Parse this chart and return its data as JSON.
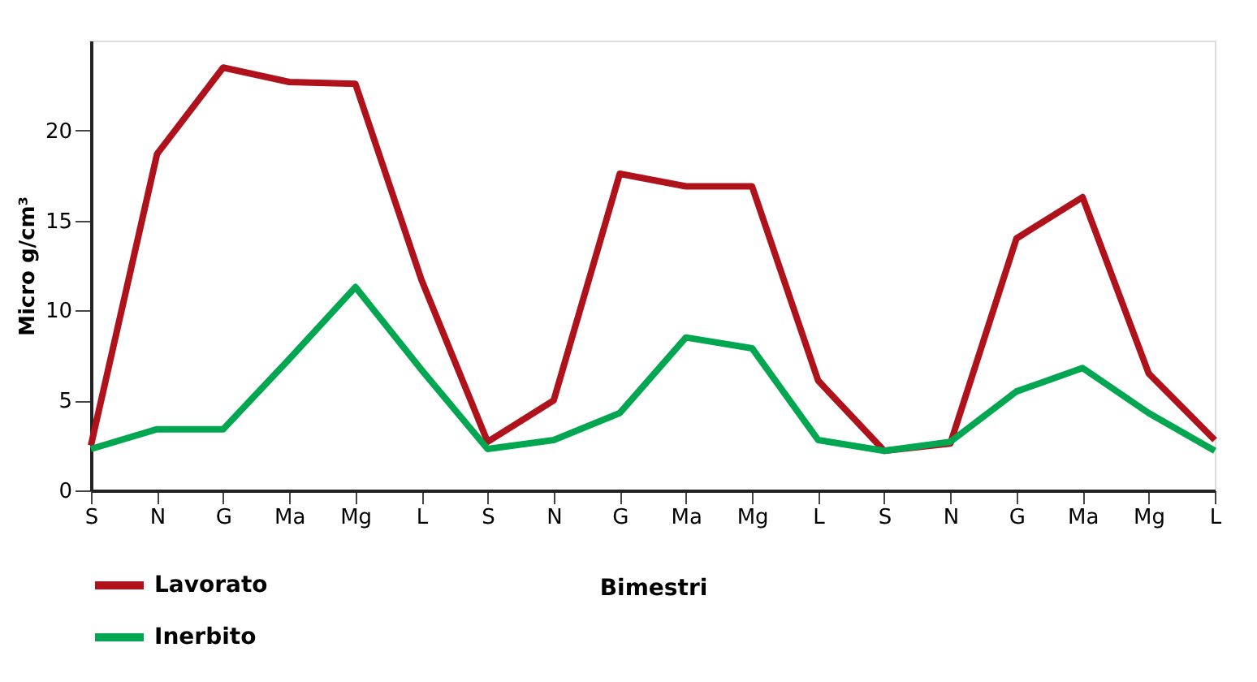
{
  "chart_data": {
    "type": "line",
    "xlabel": "Bimestri",
    "ylabel": "Micro g/cm³",
    "categories": [
      "S",
      "N",
      "G",
      "Ma",
      "Mg",
      "L",
      "S",
      "N",
      "G",
      "Ma",
      "Mg",
      "L",
      "S",
      "N",
      "G",
      "Ma",
      "Mg",
      "L"
    ],
    "series": [
      {
        "name": "Lavorato",
        "color": "#b0121b",
        "values": [
          2.5,
          18.7,
          23.5,
          22.7,
          22.6,
          11.7,
          2.7,
          5.0,
          17.6,
          16.9,
          16.9,
          6.1,
          2.2,
          2.6,
          14.0,
          16.3,
          6.5,
          2.8
        ]
      },
      {
        "name": "Inerbito",
        "color": "#00a650",
        "values": [
          2.3,
          3.4,
          3.4,
          7.3,
          11.3,
          6.7,
          2.3,
          2.8,
          4.3,
          8.5,
          7.9,
          2.8,
          2.2,
          2.7,
          5.5,
          6.8,
          4.3,
          2.2
        ]
      }
    ],
    "ylim": [
      0,
      25
    ],
    "yticks": [
      0,
      5,
      10,
      15,
      20
    ],
    "grid": false,
    "legend": "bottom left",
    "marker": "none",
    "line_style": "solid"
  }
}
